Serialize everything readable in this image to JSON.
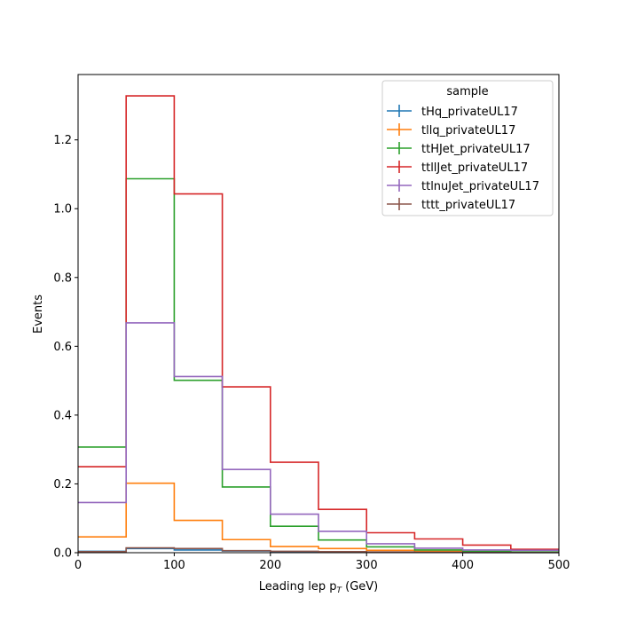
{
  "chart_data": {
    "type": "line",
    "drawstyle": "step-histogram",
    "xlabel": "Leading lep p",
    "xlabel_sub": "T",
    "xlabel_unit": " (GeV)",
    "ylabel": "Events",
    "xlim": [
      0,
      500
    ],
    "ylim": [
      0,
      1.39
    ],
    "bin_edges": [
      0,
      50,
      100,
      150,
      200,
      250,
      300,
      350,
      400,
      450,
      500
    ],
    "xticks": [
      0,
      100,
      200,
      300,
      400,
      500
    ],
    "yticks": [
      0.0,
      0.2,
      0.4,
      0.6,
      0.8,
      1.0,
      1.2
    ],
    "ytick_labels": [
      "0.0",
      "0.2",
      "0.4",
      "0.6",
      "0.8",
      "1.0",
      "1.2"
    ],
    "grid": false,
    "legend": {
      "title": "sample",
      "location": "top-right"
    },
    "series": [
      {
        "name": "tHq_privateUL17",
        "color": "#1f77b4",
        "values": [
          0.004,
          0.012,
          0.008,
          0.005,
          0.003,
          0.002,
          0.001,
          0.001,
          0.0005,
          0.0003
        ]
      },
      {
        "name": "tllq_privateUL17",
        "color": "#ff7f0e",
        "values": [
          0.046,
          0.202,
          0.094,
          0.038,
          0.018,
          0.012,
          0.007,
          0.004,
          0.002,
          0.001
        ]
      },
      {
        "name": "ttHJet_privateUL17",
        "color": "#2ca02c",
        "values": [
          0.307,
          1.087,
          0.501,
          0.191,
          0.077,
          0.037,
          0.017,
          0.008,
          0.004,
          0.002
        ]
      },
      {
        "name": "ttllJet_privateUL17",
        "color": "#d62728",
        "values": [
          0.25,
          1.328,
          1.043,
          0.482,
          0.263,
          0.126,
          0.058,
          0.04,
          0.022,
          0.01
        ]
      },
      {
        "name": "ttlnuJet_privateUL17",
        "color": "#9467bd",
        "values": [
          0.146,
          0.668,
          0.512,
          0.242,
          0.112,
          0.062,
          0.026,
          0.013,
          0.008,
          0.007
        ]
      },
      {
        "name": "tttt_privateUL17",
        "color": "#8c564b",
        "values": [
          0.003,
          0.014,
          0.012,
          0.006,
          0.004,
          0.003,
          0.002,
          0.001,
          0.0005,
          0.0003
        ]
      }
    ]
  }
}
